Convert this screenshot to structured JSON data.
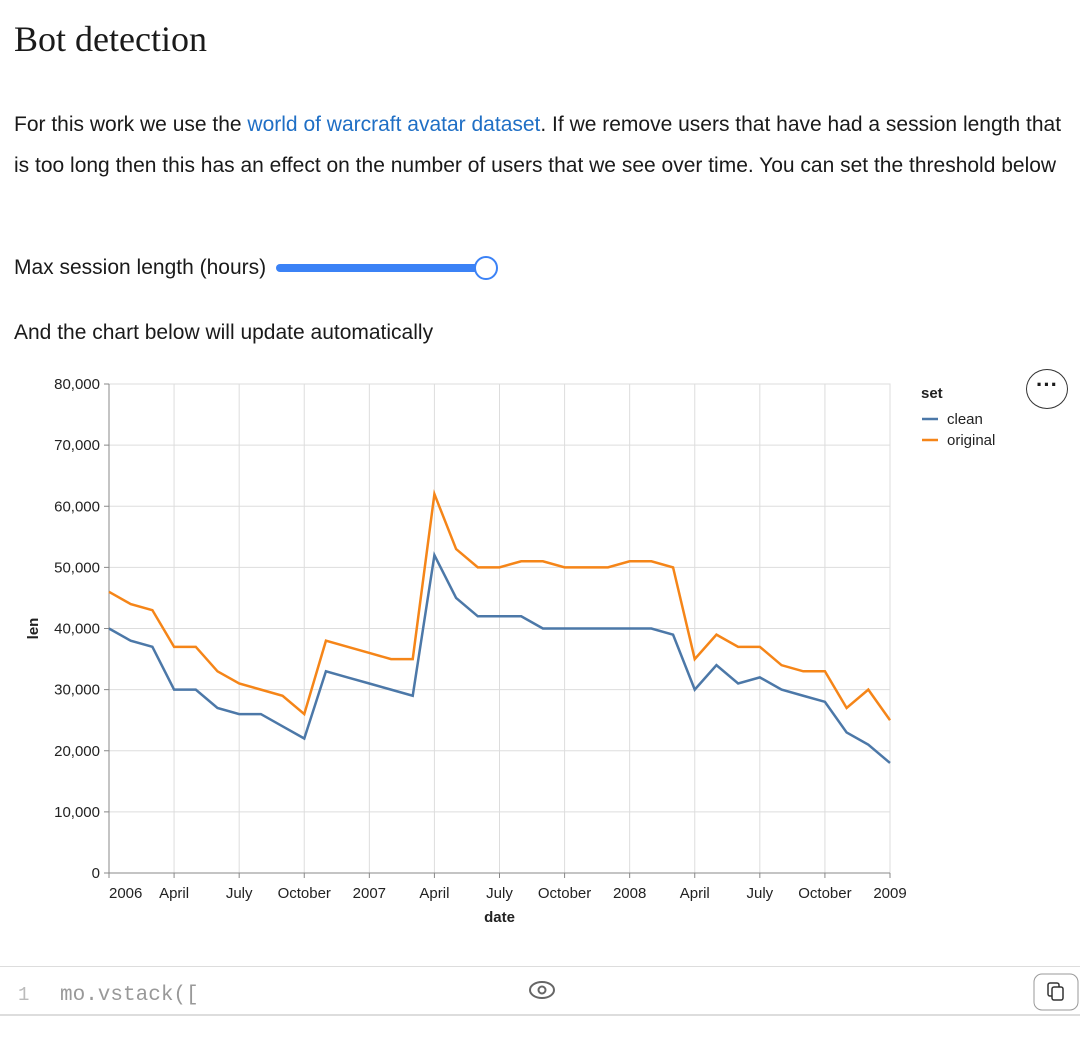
{
  "header": {
    "title": "Bot detection"
  },
  "paragraph": {
    "before": "For this work we use the ",
    "link": "world of warcraft avatar dataset",
    "after": ". If we remove users that have had a session length that is too long then this has an effect on the number of users that we see over time. You can set the threshold below"
  },
  "slider": {
    "label": "Max session length (hours)"
  },
  "caption": "And the chart below will update automatically",
  "code": {
    "line_number": "1",
    "text": "mo.vstack(["
  },
  "chart_data": {
    "type": "line",
    "x_label": "date",
    "y_label": "len",
    "legend_title": "set",
    "grid": true,
    "x": [
      "2006-01",
      "2006-02",
      "2006-03",
      "2006-04",
      "2006-05",
      "2006-06",
      "2006-07",
      "2006-08",
      "2006-09",
      "2006-10",
      "2006-11",
      "2006-12",
      "2007-01",
      "2007-02",
      "2007-03",
      "2007-04",
      "2007-05",
      "2007-06",
      "2007-07",
      "2007-08",
      "2007-09",
      "2007-10",
      "2007-11",
      "2007-12",
      "2008-01",
      "2008-02",
      "2008-03",
      "2008-04",
      "2008-05",
      "2008-06",
      "2008-07",
      "2008-08",
      "2008-09",
      "2008-10",
      "2008-11",
      "2008-12",
      "2009-01"
    ],
    "series": [
      {
        "name": "original",
        "color": "#f58518",
        "values": [
          46000,
          44000,
          43000,
          37000,
          37000,
          33000,
          31000,
          30000,
          29000,
          26000,
          38000,
          37000,
          36000,
          35000,
          35000,
          62000,
          53000,
          50000,
          50000,
          51000,
          51000,
          50000,
          50000,
          50000,
          51000,
          51000,
          50000,
          35000,
          39000,
          37000,
          37000,
          34000,
          33000,
          33000,
          27000,
          30000,
          25000
        ]
      },
      {
        "name": "clean",
        "color": "#4c78a8",
        "values": [
          40000,
          38000,
          37000,
          30000,
          30000,
          27000,
          26000,
          26000,
          24000,
          22000,
          33000,
          32000,
          31000,
          30000,
          29000,
          52000,
          45000,
          42000,
          42000,
          42000,
          40000,
          40000,
          40000,
          40000,
          40000,
          40000,
          39000,
          30000,
          34000,
          31000,
          32000,
          30000,
          29000,
          28000,
          23000,
          21000,
          18000
        ]
      }
    ],
    "xlim": [
      "2006-01",
      "2009-01"
    ],
    "xticks": [
      {
        "value": "2006-01",
        "label": "2006"
      },
      {
        "value": "2006-04",
        "label": "April"
      },
      {
        "value": "2006-07",
        "label": "July"
      },
      {
        "value": "2006-10",
        "label": "October"
      },
      {
        "value": "2007-01",
        "label": "2007"
      },
      {
        "value": "2007-04",
        "label": "April"
      },
      {
        "value": "2007-07",
        "label": "July"
      },
      {
        "value": "2007-10",
        "label": "October"
      },
      {
        "value": "2008-01",
        "label": "2008"
      },
      {
        "value": "2008-04",
        "label": "April"
      },
      {
        "value": "2008-07",
        "label": "July"
      },
      {
        "value": "2008-10",
        "label": "October"
      },
      {
        "value": "2009-01",
        "label": "2009"
      }
    ],
    "ylim": [
      0,
      80000
    ],
    "yticks": [
      0,
      {
        "value": 10000,
        "label": "10,000"
      },
      {
        "value": 20000,
        "label": "20,000"
      },
      {
        "value": 30000,
        "label": "30,000"
      },
      {
        "value": 40000,
        "label": "40,000"
      },
      {
        "value": 50000,
        "label": "50,000"
      },
      {
        "value": 60000,
        "label": "60,000"
      },
      {
        "value": 70000,
        "label": "70,000"
      },
      {
        "value": 80000,
        "label": "80,000"
      }
    ]
  }
}
